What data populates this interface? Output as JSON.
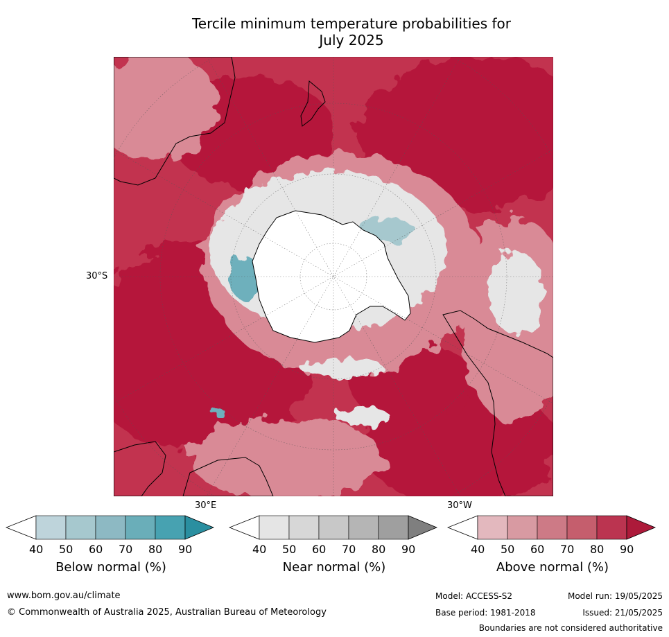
{
  "title_line1": "Tercile minimum temperature probabilities for",
  "title_line2": "July 2025",
  "map": {
    "projection": "south-polar-stereographic",
    "lat_label": "30°S",
    "lon_labels": [
      "30°E",
      "30°W"
    ],
    "palette": {
      "above_dark": "#b5173a",
      "above_mid": "#c73b55",
      "above_light": "#d98a96",
      "near": "#e6e6e6",
      "below": "#6eb0bc",
      "ice": "#ffffff"
    }
  },
  "colorbars": [
    {
      "label": "Below normal (%)",
      "ticks": [
        "40",
        "50",
        "60",
        "70",
        "80",
        "90"
      ],
      "colors": [
        "#ffffff",
        "#bed4db",
        "#a6c8ce",
        "#8db9c3",
        "#6aaeb9",
        "#47a2b1",
        "#2a8fa0"
      ]
    },
    {
      "label": "Near normal (%)",
      "ticks": [
        "40",
        "50",
        "60",
        "70",
        "80",
        "90"
      ],
      "colors": [
        "#ffffff",
        "#e5e5e5",
        "#d7d7d7",
        "#c8c8c8",
        "#b5b5b5",
        "#9f9f9f",
        "#7f7f7f"
      ]
    },
    {
      "label": "Above normal (%)",
      "ticks": [
        "40",
        "50",
        "60",
        "70",
        "80",
        "90"
      ],
      "colors": [
        "#ffffff",
        "#e3b8be",
        "#d89aa2",
        "#cd7a86",
        "#c55e6d",
        "#bb3450",
        "#ad1a3a"
      ]
    }
  ],
  "footer": {
    "website": "www.bom.gov.au/climate",
    "copyright": "© Commonwealth of Australia 2025, Australian Bureau of Meteorology",
    "model": "Model: ACCESS-S2",
    "model_run": "Model run: 19/05/2025",
    "base_period": "Base period: 1981-2018",
    "issued": "Issued: 21/05/2025",
    "disclaimer": "Boundaries are not considered authoritative"
  }
}
